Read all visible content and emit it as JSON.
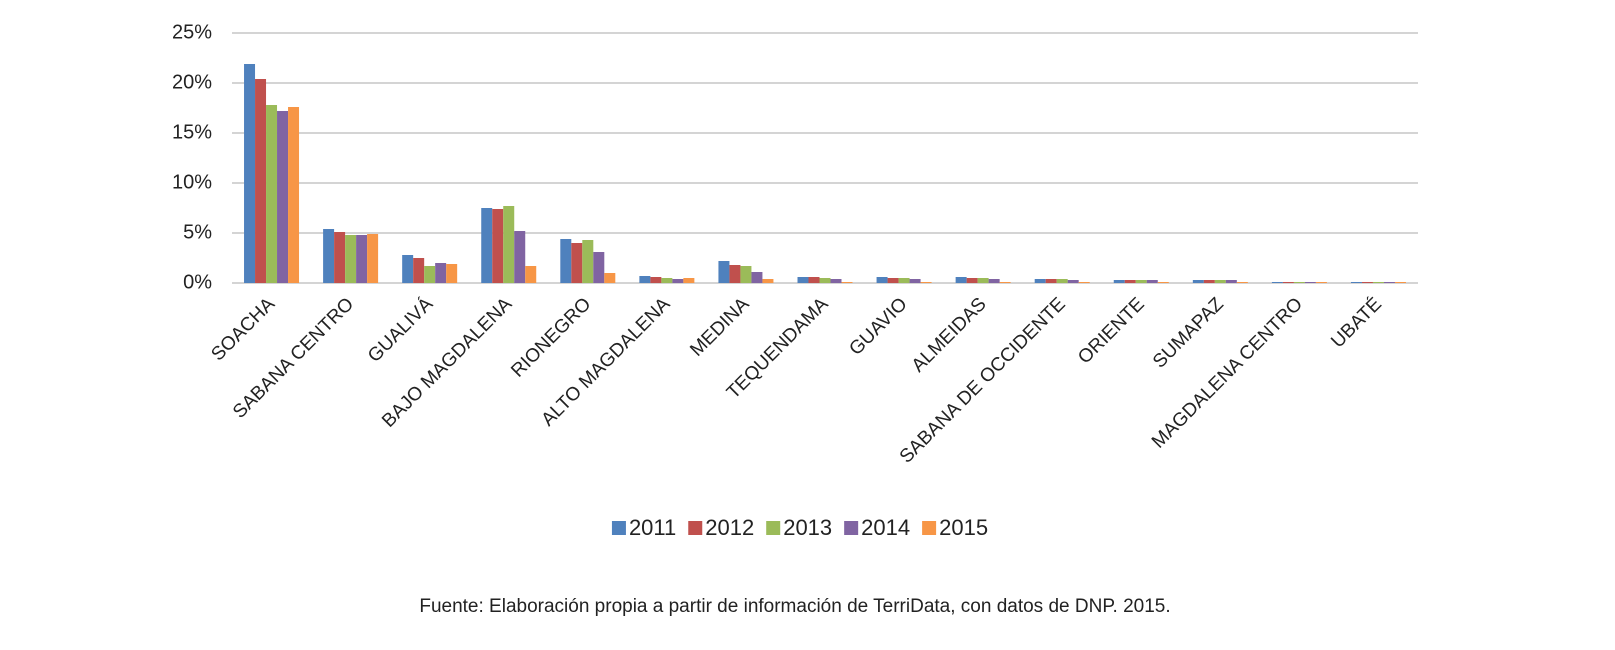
{
  "chart_data": {
    "type": "bar",
    "categories": [
      "SOACHA",
      "SABANA CENTRO",
      "GUALIVÁ",
      "BAJO MAGDALENA",
      "RIONEGRO",
      "ALTO MAGDALENA",
      "MEDINA",
      "TEQUENDAMA",
      "GUAVIO",
      "ALMEIDAS",
      "SABANA DE OCCIDENTE",
      "ORIENTE",
      "SUMAPAZ",
      "MAGDALENA CENTRO",
      "UBATÉ"
    ],
    "series": [
      {
        "name": "2011",
        "color": "#4f81bd",
        "values": [
          21.9,
          5.4,
          2.8,
          7.5,
          4.4,
          0.7,
          2.2,
          0.6,
          0.6,
          0.6,
          0.4,
          0.3,
          0.3,
          0.1,
          0.1
        ]
      },
      {
        "name": "2012",
        "color": "#c0504d",
        "values": [
          20.4,
          5.1,
          2.5,
          7.4,
          4.0,
          0.6,
          1.8,
          0.6,
          0.5,
          0.5,
          0.4,
          0.3,
          0.3,
          0.1,
          0.1
        ]
      },
      {
        "name": "2013",
        "color": "#9bbb59",
        "values": [
          17.8,
          4.8,
          1.7,
          7.7,
          4.3,
          0.5,
          1.7,
          0.5,
          0.5,
          0.5,
          0.4,
          0.3,
          0.3,
          0.1,
          0.1
        ]
      },
      {
        "name": "2014",
        "color": "#8064a2",
        "values": [
          17.2,
          4.8,
          2.0,
          5.2,
          3.1,
          0.4,
          1.1,
          0.4,
          0.4,
          0.4,
          0.3,
          0.3,
          0.3,
          0.1,
          0.1
        ]
      },
      {
        "name": "2015",
        "color": "#f79646",
        "values": [
          17.6,
          4.9,
          1.9,
          1.7,
          1.0,
          0.5,
          0.4,
          0.1,
          0.1,
          0.1,
          0.1,
          0.1,
          0.1,
          0.1,
          0.1
        ]
      }
    ],
    "ylim": [
      0,
      25
    ],
    "yticks": [
      {
        "value": 0,
        "label": "0%"
      },
      {
        "value": 5,
        "label": "5%"
      },
      {
        "value": 10,
        "label": "10%"
      },
      {
        "value": 15,
        "label": "15%"
      },
      {
        "value": 20,
        "label": "20%"
      },
      {
        "value": 25,
        "label": "25%"
      }
    ],
    "grid": true,
    "legend": "bottom",
    "source": "Fuente: Elaboración propia a partir de información de TerriData, con datos de DNP. 2015."
  }
}
